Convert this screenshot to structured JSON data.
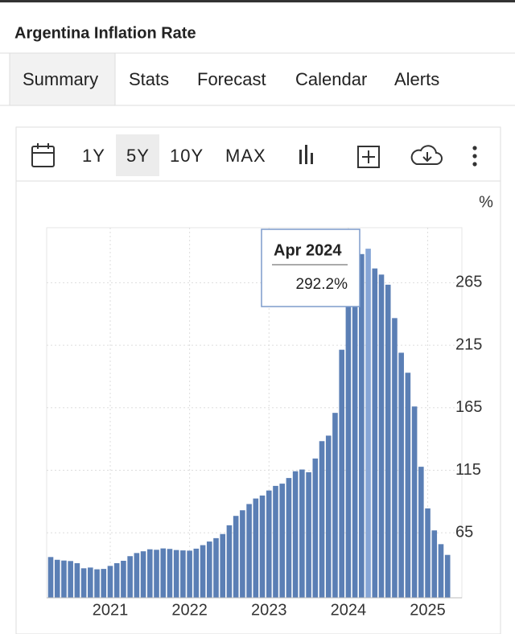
{
  "header": {
    "title": "Argentina Inflation Rate"
  },
  "tabs": [
    "Summary",
    "Stats",
    "Forecast",
    "Calendar",
    "Alerts"
  ],
  "toolbar": {
    "ranges": [
      "1Y",
      "5Y",
      "10Y",
      "MAX"
    ]
  },
  "chart_data": {
    "type": "bar",
    "y_unit": "%",
    "color": "#5b7fb5",
    "highlight_color": "#86a5d6",
    "categories": [
      null,
      null,
      null,
      null,
      null,
      null,
      null,
      null,
      null,
      "2021",
      null,
      null,
      null,
      null,
      null,
      null,
      null,
      null,
      null,
      null,
      null,
      "2022",
      null,
      null,
      null,
      null,
      null,
      null,
      null,
      null,
      null,
      null,
      null,
      "2023",
      null,
      null,
      null,
      null,
      null,
      null,
      null,
      null,
      null,
      null,
      null,
      "2024",
      null,
      null,
      null,
      null,
      null,
      null,
      null,
      null,
      null,
      null,
      null,
      "2025",
      null,
      null,
      null
    ],
    "values": [
      45.6,
      43.4,
      42.8,
      42.4,
      40.7,
      36.6,
      37.2,
      35.8,
      36.1,
      38.5,
      40.7,
      42.6,
      46.3,
      48.8,
      50.2,
      51.8,
      51.4,
      52.5,
      52.1,
      51.2,
      50.9,
      50.7,
      52.3,
      55.1,
      58.0,
      60.7,
      64.0,
      71.0,
      78.5,
      83.0,
      88.0,
      92.4,
      94.8,
      98.8,
      102.5,
      104.3,
      108.8,
      114.2,
      115.6,
      113.4,
      124.4,
      138.3,
      142.7,
      160.9,
      211.4,
      254.2,
      276.2,
      287.9,
      292.2,
      276.4,
      271.5,
      263.4,
      236.7,
      209.0,
      193.0,
      166.0,
      117.8,
      84.5,
      66.9,
      55.9,
      47.3
    ],
    "ylim": [
      13,
      309
    ],
    "yticks": [
      65,
      115,
      165,
      215,
      265
    ],
    "grid": true,
    "tooltip": {
      "title": "Apr 2024",
      "value": 292.2,
      "value_label": "292.2%"
    }
  }
}
